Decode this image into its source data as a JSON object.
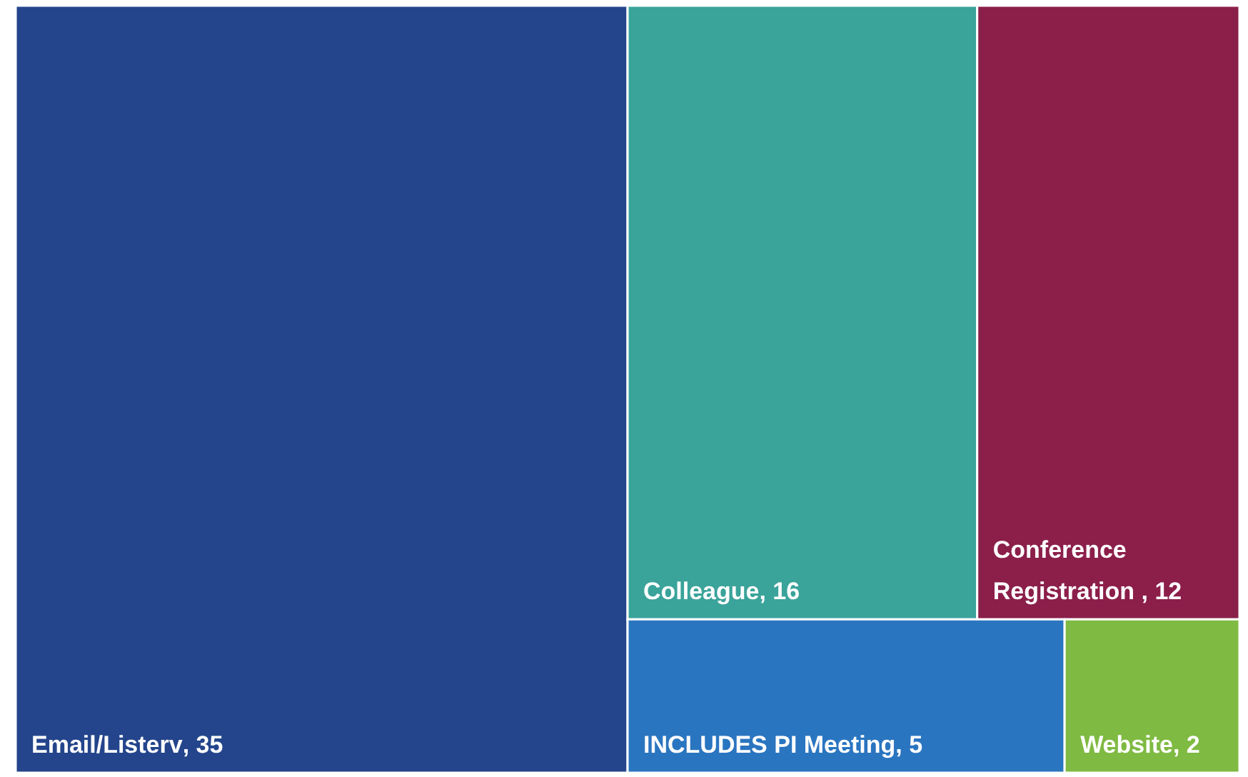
{
  "chart_data": {
    "type": "other",
    "categories": [
      "Email/Listerv",
      "Colleague",
      "Conference Registration",
      "INCLUDES PI Meeting",
      "Website"
    ],
    "values": [
      35,
      16,
      12,
      5,
      2
    ],
    "value_labels": [
      ", 35",
      ", 16",
      " , 12",
      ", 5",
      ", 2"
    ],
    "colors": [
      "#24458c",
      "#3aa39a",
      "#8b1f4a",
      "#2a75c0",
      "#7fba42"
    ]
  }
}
